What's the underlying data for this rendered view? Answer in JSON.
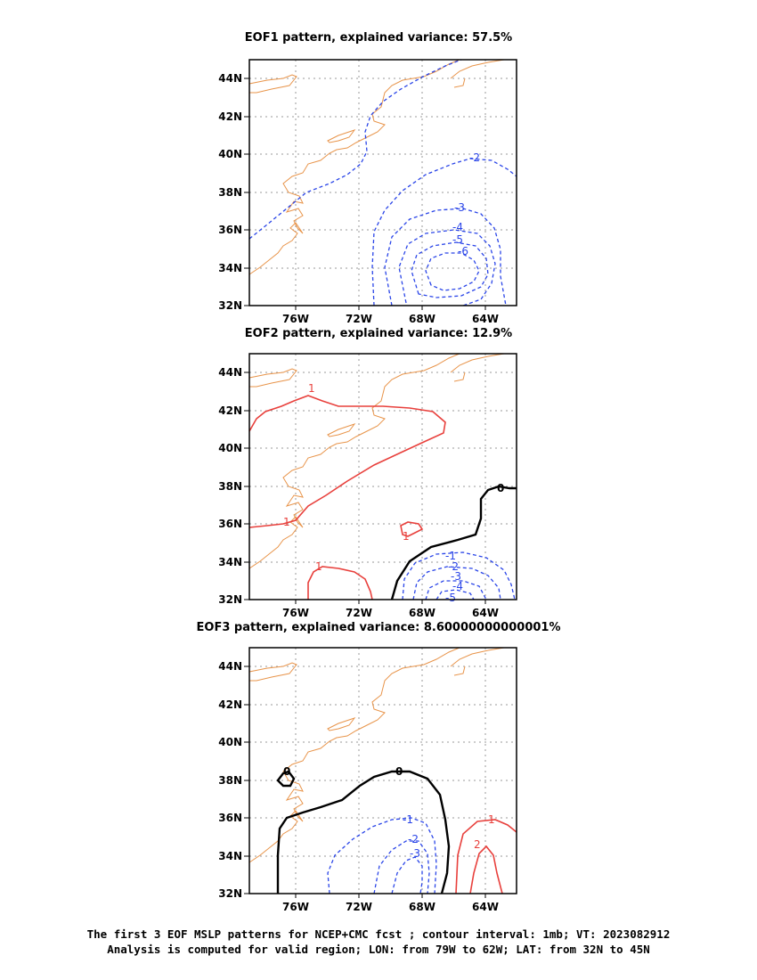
{
  "panels": [
    {
      "title": "EOF1 pattern, explained variance: 57.5%",
      "contour_labels": [
        "-2",
        "-3",
        "-4",
        "-5",
        "-6"
      ]
    },
    {
      "title": "EOF2 pattern, explained variance: 12.9%",
      "contour_labels": [
        "1",
        "1",
        "1",
        "1",
        "0",
        "-1",
        "-2",
        "-3",
        "-4",
        "-5"
      ]
    },
    {
      "title": "EOF3 pattern, explained variance: 8.60000000000001%",
      "contour_labels": [
        "0",
        "0",
        "-1",
        "-2",
        "-3",
        "1",
        "2"
      ]
    }
  ],
  "axes": {
    "lat_ticks": [
      "44N",
      "42N",
      "40N",
      "38N",
      "36N",
      "34N",
      "32N"
    ],
    "lon_ticks": [
      "76W",
      "72W",
      "68W",
      "64W"
    ]
  },
  "colors": {
    "coast": "#e8944a",
    "negative": "#2a45e8",
    "positive": "#e8403c",
    "zero": "#000000",
    "grid": "#9a9a9a"
  },
  "caption": {
    "line1": "The first 3 EOF MSLP patterns for NCEP+CMC fcst ; contour interval: 1mb; VT: 2023082912",
    "line2": "Analysis is computed for valid region; LON: from 79W to 62W; LAT: from 32N to 45N"
  }
}
